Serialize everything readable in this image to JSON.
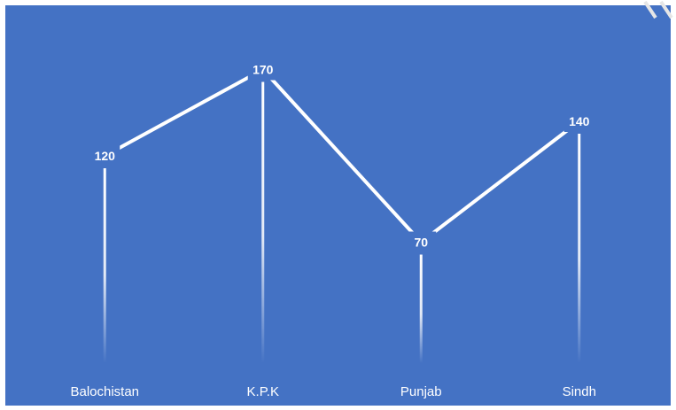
{
  "chart_data": {
    "type": "line",
    "categories": [
      "Balochistan",
      "K.P.K",
      "Punjab",
      "Sindh"
    ],
    "values": [
      120,
      170,
      70,
      140
    ],
    "data_labels": [
      "120",
      "170",
      "70",
      "140"
    ],
    "title": "",
    "xlabel": "",
    "ylabel": "",
    "ylim": [
      0,
      200
    ],
    "grid": false,
    "legend": "none",
    "colors": {
      "background": "#4472c4",
      "line": "#ffffff",
      "text": "#ffffff"
    }
  }
}
